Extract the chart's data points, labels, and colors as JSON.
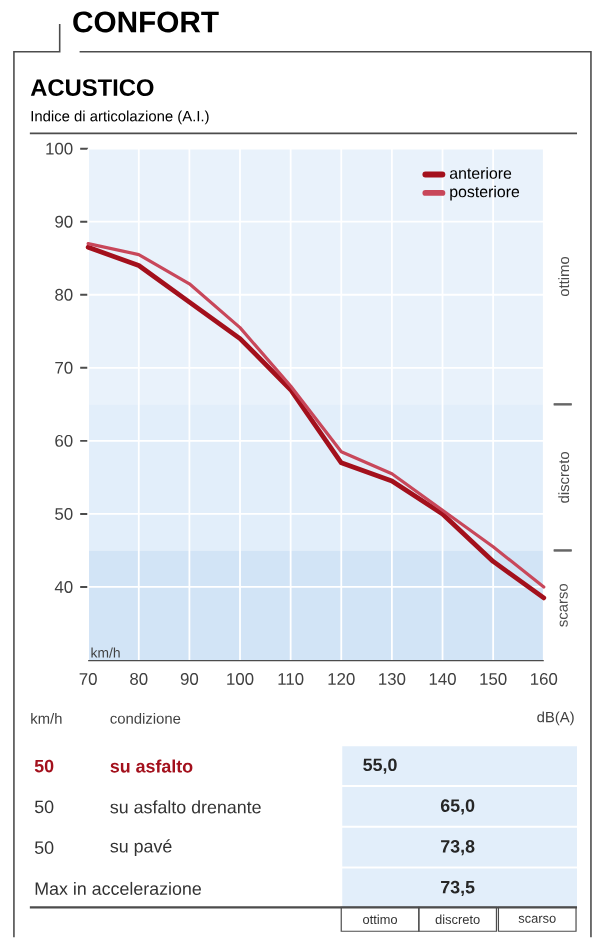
{
  "chart_data": [
    {
      "type": "line",
      "title": "ACUSTICO",
      "ylabel": "Indice di articolazione (A.I.)",
      "xlabel": "km/h",
      "annotations": [
        "CONFORT"
      ],
      "x": [
        70,
        80,
        90,
        100,
        110,
        120,
        130,
        140,
        150,
        160
      ],
      "series": [
        {
          "name": "anteriore",
          "color": "#a3101c",
          "values": [
            86.5,
            84,
            79,
            74,
            67,
            57,
            54.5,
            50,
            43.5,
            38.5
          ]
        },
        {
          "name": "posteriore",
          "color": "#c8475a",
          "values": [
            87,
            85.5,
            81.5,
            75.5,
            67.5,
            58.5,
            55.5,
            50.5,
            45.5,
            40
          ]
        }
      ],
      "xlim": [
        70,
        160
      ],
      "ylim": [
        30,
        100
      ],
      "xticks": [
        70,
        80,
        90,
        100,
        110,
        120,
        130,
        140,
        150,
        160
      ],
      "yticks": [
        40,
        50,
        60,
        70,
        80,
        90,
        100
      ],
      "bands": [
        {
          "axis": "y",
          "from": 65,
          "to": 100,
          "label": "ottimo",
          "color": "#e9f2fb"
        },
        {
          "axis": "y",
          "from": 45,
          "to": 65,
          "label": "discreto",
          "color": "#e2eefa"
        },
        {
          "axis": "y",
          "from": 30,
          "to": 45,
          "label": "scarso",
          "color": "#d2e4f6"
        }
      ],
      "grid": true,
      "legend": "top right",
      "line_style": "solid"
    },
    {
      "type": "other",
      "annotations": [
        "km/h",
        "condizione",
        "dB(A)",
        "50",
        "su asfalto",
        "55,0",
        "50",
        "su asfalto drenante",
        "65,0",
        "50",
        "su pavé",
        "73,8",
        "Max in accelerazione",
        "73,5",
        "ottimo",
        "discreto",
        "scarso"
      ]
    }
  ]
}
